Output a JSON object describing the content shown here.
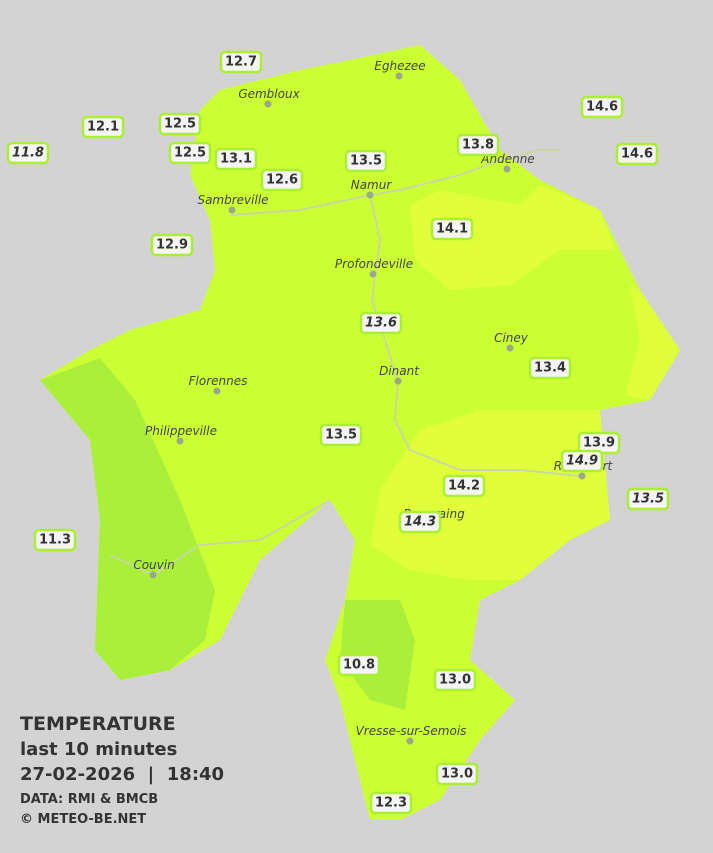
{
  "cities": [
    "Eghezee",
    "Gembloux",
    "Andenne",
    "Namur",
    "Sambreville",
    "Profondeville",
    "Ciney",
    "Dinant",
    "Florennes",
    "Philippeville",
    "Couvin",
    "Vresse-sur-Semois",
    "Beauraing",
    "Rochefort"
  ],
  "stations": [
    {
      "value": "12.7",
      "italic": false
    },
    {
      "value": "12.1",
      "italic": false
    },
    {
      "value": "11.8",
      "italic": true
    },
    {
      "value": "12.5",
      "italic": false
    },
    {
      "value": "12.5",
      "italic": false
    },
    {
      "value": "13.1",
      "italic": false
    },
    {
      "value": "12.6",
      "italic": false
    },
    {
      "value": "13.5",
      "italic": false
    },
    {
      "value": "13.8",
      "italic": false
    },
    {
      "value": "14.6",
      "italic": false
    },
    {
      "value": "14.6",
      "italic": false
    },
    {
      "value": "12.9",
      "italic": false
    },
    {
      "value": "14.1",
      "italic": false
    },
    {
      "value": "13.6",
      "italic": true
    },
    {
      "value": "13.4",
      "italic": false
    },
    {
      "value": "13.5",
      "italic": false
    },
    {
      "value": "13.9",
      "italic": false
    },
    {
      "value": "14.9",
      "italic": true
    },
    {
      "value": "14.2",
      "italic": false
    },
    {
      "value": "13.5",
      "italic": true
    },
    {
      "value": "14.3",
      "italic": true
    },
    {
      "value": "11.3",
      "italic": false
    },
    {
      "value": "10.8",
      "italic": false
    },
    {
      "value": "13.0",
      "italic": false
    },
    {
      "value": "13.0",
      "italic": false
    },
    {
      "value": "12.3",
      "italic": false
    }
  ],
  "legend": {
    "title": "TEMPERATURE",
    "subtitle": "last 10 minutes",
    "datetime": "27-02-2026  |  18:40",
    "source": "DATA: RMI & BMCB",
    "copyright": "© METEO-BE.NET"
  }
}
